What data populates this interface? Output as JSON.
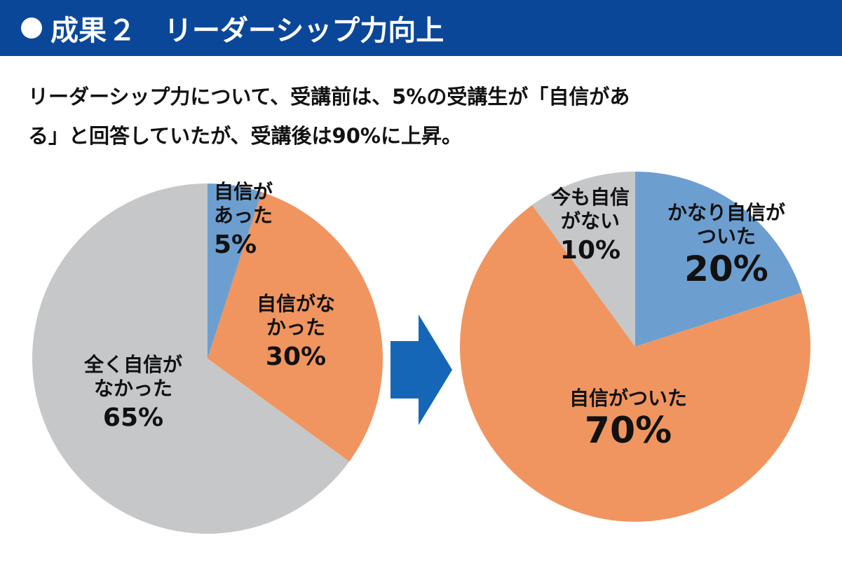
{
  "header": {
    "bullet": "●",
    "title": "成果",
    "number": "２",
    "subtitle": "リーダーシップ力向上"
  },
  "description": {
    "line1": "リーダーシップ力について、受講前は、5%の受講生が「自信があ",
    "line2": "る」と回答していたが、受講後は90%に上昇。"
  },
  "colors": {
    "header_bg": "#0b4799",
    "blue": "#6c9fd0",
    "orange": "#f0955f",
    "gray": "#c6c7c9",
    "arrow": "#1666b8"
  },
  "chart_data": [
    {
      "type": "pie",
      "start": "top",
      "direction": "clockwise",
      "slices": [
        {
          "label_lines": [
            "自信が",
            "あった"
          ],
          "value": 5,
          "value_text": "5%",
          "color": "#6c9fd0"
        },
        {
          "label_lines": [
            "自信がな",
            "かった"
          ],
          "value": 30,
          "value_text": "30%",
          "color": "#f0955f"
        },
        {
          "label_lines": [
            "全く自信が",
            "なかった"
          ],
          "value": 65,
          "value_text": "65%",
          "color": "#c6c7c9"
        }
      ]
    },
    {
      "type": "pie",
      "start": "top",
      "direction": "clockwise",
      "slices": [
        {
          "label_lines": [
            "かなり自信が",
            "ついた"
          ],
          "value": 20,
          "value_text": "20%",
          "color": "#6c9fd0"
        },
        {
          "label_lines": [
            "自信がついた"
          ],
          "value": 70,
          "value_text": "70%",
          "color": "#f0955f"
        },
        {
          "label_lines": [
            "今も自信",
            "がない"
          ],
          "value": 10,
          "value_text": "10%",
          "color": "#c6c7c9"
        }
      ]
    }
  ]
}
